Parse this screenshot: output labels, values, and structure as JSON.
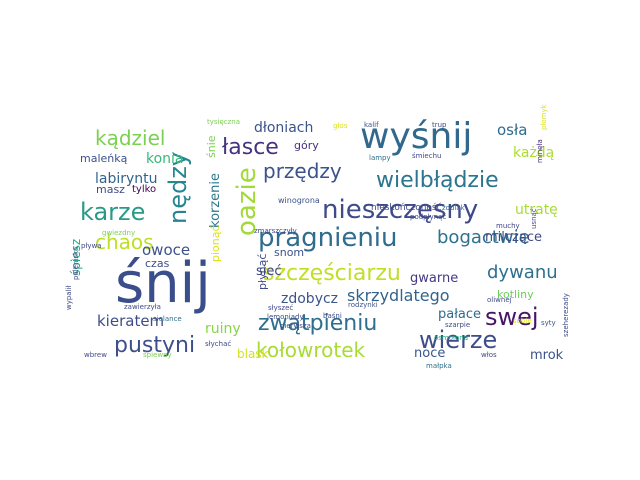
{
  "wordcloud": {
    "words": [
      {
        "text": "śnij",
        "color": "#3b4e8c"
      },
      {
        "text": "wyśnij",
        "color": "#31688e"
      },
      {
        "text": "nieszczęsny",
        "color": "#3e4a89"
      },
      {
        "text": "pragnieniu",
        "color": "#2f6c8e"
      },
      {
        "text": "zwątpieniu",
        "color": "#2e6e8e"
      },
      {
        "text": "pustyni",
        "color": "#3c4f8a"
      },
      {
        "text": "kołowrotek",
        "color": "#a8db34"
      },
      {
        "text": "szczęściarzu",
        "color": "#c0df25"
      },
      {
        "text": "wierze",
        "color": "#3e4c8a"
      },
      {
        "text": "wielbłądzie",
        "color": "#2b758e"
      },
      {
        "text": "łasce",
        "color": "#46327e"
      },
      {
        "text": "przędzy",
        "color": "#3b528b"
      },
      {
        "text": "kądziel",
        "color": "#7ad151"
      },
      {
        "text": "karze",
        "color": "#2a9a87"
      },
      {
        "text": "swej",
        "color": "#481467"
      },
      {
        "text": "oazie",
        "color": "#a2da37"
      },
      {
        "text": "nędzy",
        "color": "#24868e"
      },
      {
        "text": "bogactwie",
        "color": "#2c718e"
      },
      {
        "text": "dywanu",
        "color": "#2d708e"
      },
      {
        "text": "chaos",
        "color": "#bddf26"
      },
      {
        "text": "skrzydlatego",
        "color": "#33638d"
      },
      {
        "text": "kieratem",
        "color": "#3d4d8a"
      },
      {
        "text": "dłoniach",
        "color": "#3a548c"
      },
      {
        "text": "konia",
        "color": "#37b878"
      },
      {
        "text": "labiryntu",
        "color": "#33638d"
      },
      {
        "text": "zdobycz",
        "color": "#3a548c"
      },
      {
        "text": "osła",
        "color": "#2f6b8e"
      },
      {
        "text": "każdą",
        "color": "#addc30"
      },
      {
        "text": "utratę",
        "color": "#a8db34"
      },
      {
        "text": "ruiny",
        "color": "#86d549"
      },
      {
        "text": "pałace",
        "color": "#2f6b8e"
      },
      {
        "text": "noce",
        "color": "#3a548c"
      },
      {
        "text": "mrok",
        "color": "#3b528b"
      },
      {
        "text": "milczące",
        "color": "#3e4a89"
      },
      {
        "text": "sieć",
        "color": "#414487"
      },
      {
        "text": "owoce",
        "color": "#3b528b"
      },
      {
        "text": "korzenie",
        "color": "#2a788e"
      },
      {
        "text": "gwarne",
        "color": "#443983"
      },
      {
        "text": "kotliny",
        "color": "#6ccd5a"
      },
      {
        "text": "snom",
        "color": "#3b528b"
      },
      {
        "text": "czas",
        "color": "#3e4a89"
      },
      {
        "text": "góry",
        "color": "#472f7d"
      },
      {
        "text": "blask",
        "color": "#d2e21b"
      },
      {
        "text": "maleńką",
        "color": "#3b528b"
      },
      {
        "text": "masz",
        "color": "#3e4a89"
      },
      {
        "text": "tylko",
        "color": "#440154"
      },
      {
        "text": "śpiesz",
        "color": "#22a884"
      },
      {
        "text": "pionąć",
        "color": "#dde318"
      },
      {
        "text": "płynąć",
        "color": "#3e4a89"
      },
      {
        "text": "śnie",
        "color": "#7ad151"
      },
      {
        "text": "nieskończoność",
        "color": "#3e4a89"
      },
      {
        "text": "winogrona",
        "color": "#3b528b"
      },
      {
        "text": "lampy",
        "color": "#2c718e"
      },
      {
        "text": "śmiechu",
        "color": "#3e4a89"
      },
      {
        "text": "zmarszczyły",
        "color": "#414487"
      },
      {
        "text": "tysięczna",
        "color": "#7ad151"
      },
      {
        "text": "głos",
        "color": "#dde318"
      },
      {
        "text": "kalif",
        "color": "#3b528b"
      },
      {
        "text": "trup",
        "color": "#3e4a89"
      },
      {
        "text": "płomyk",
        "color": "#dde318"
      },
      {
        "text": "minęła",
        "color": "#472f7d"
      },
      {
        "text": "zodiak",
        "color": "#2c718e"
      },
      {
        "text": "podpłynąć",
        "color": "#3e4a89"
      },
      {
        "text": "muchy",
        "color": "#414487"
      },
      {
        "text": "usnąć",
        "color": "#3e4a89"
      },
      {
        "text": "rodzynki",
        "color": "#3b528b"
      },
      {
        "text": "lemoniady",
        "color": "#3e4a89"
      },
      {
        "text": "baśni",
        "color": "#3e4a89"
      },
      {
        "text": "szarpie",
        "color": "#3e4a89"
      },
      {
        "text": "pierwsza",
        "color": "#3e4a89"
      },
      {
        "text": "osmołona",
        "color": "#22a884"
      },
      {
        "text": "oliwnej",
        "color": "#3e4a89"
      },
      {
        "text": "syty",
        "color": "#3b528b"
      },
      {
        "text": "sobie",
        "color": "#dde318"
      },
      {
        "text": "małpka",
        "color": "#2c718e"
      },
      {
        "text": "włos",
        "color": "#3e4a89"
      },
      {
        "text": "szeherezady",
        "color": "#3e4a89"
      },
      {
        "text": "wypalił",
        "color": "#3e4a89"
      },
      {
        "text": "paleniska",
        "color": "#3e4a89"
      },
      {
        "text": "pływa",
        "color": "#3e4a89"
      },
      {
        "text": "zawierzyła",
        "color": "#3e4a89"
      },
      {
        "text": "słyszeć",
        "color": "#3e4a89"
      },
      {
        "text": "słychać",
        "color": "#3e4a89"
      },
      {
        "text": "śpiewny",
        "color": "#7ad151"
      },
      {
        "text": "wbrew",
        "color": "#3e4a89"
      },
      {
        "text": "gwiezdny",
        "color": "#7ad151"
      },
      {
        "text": "sielance",
        "color": "#2c718e"
      }
    ]
  }
}
